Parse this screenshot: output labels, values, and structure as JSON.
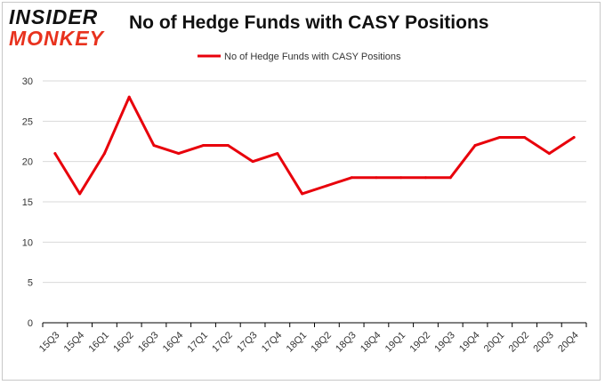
{
  "brand": {
    "line1": "INSIDER",
    "line2": "MONKEY"
  },
  "colors": {
    "series": "#e8000b",
    "grid": "#d9d9d9",
    "axis": "#000000",
    "brand_red": "#e8321e"
  },
  "chart_data": {
    "type": "line",
    "title": "No of Hedge Funds with CASY Positions",
    "categories": [
      "15Q3",
      "15Q4",
      "16Q1",
      "16Q2",
      "16Q3",
      "16Q4",
      "17Q1",
      "17Q2",
      "17Q3",
      "17Q4",
      "18Q1",
      "18Q2",
      "18Q3",
      "18Q4",
      "19Q1",
      "19Q2",
      "19Q3",
      "19Q4",
      "20Q1",
      "20Q2",
      "20Q3",
      "20Q4"
    ],
    "series": [
      {
        "name": "No of Hedge Funds with CASY Positions",
        "values": [
          21,
          16,
          21,
          28,
          22,
          21,
          22,
          22,
          20,
          21,
          16,
          17,
          18,
          18,
          18,
          18,
          18,
          22,
          23,
          23,
          21,
          23
        ]
      }
    ],
    "ylim": [
      0,
      30
    ],
    "yticks": [
      0,
      5,
      10,
      15,
      20,
      25,
      30
    ],
    "grid": true,
    "legend": "top-center"
  }
}
